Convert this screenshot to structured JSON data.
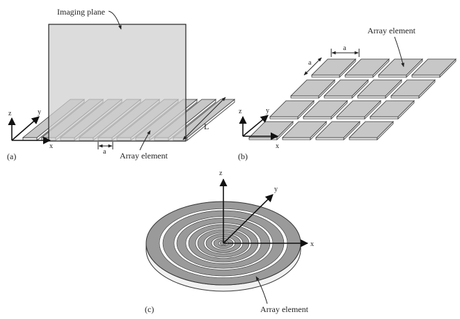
{
  "panel_a": {
    "imaging_plane_label": "Imaging plane",
    "array_element_label": "Array element",
    "dim_a": "a",
    "dim_L": "L",
    "axis_z": "z",
    "axis_y": "y",
    "axis_x": "x",
    "panel_label": "(a)"
  },
  "panel_b": {
    "array_element_label": "Array element",
    "dim_a_top": "a",
    "dim_a_side": "a",
    "axis_z": "z",
    "axis_y": "y",
    "axis_x": "x",
    "panel_label": "(b)"
  },
  "panel_c": {
    "array_element_label": "Array element",
    "axis_z": "z",
    "axis_y": "y",
    "axis_x": "x",
    "panel_label": "(c)"
  },
  "colors": {
    "element_fill": "#c7c7c7",
    "plane_fill": "#d6d6d6",
    "ring_fill": "#9a9a9a",
    "line": "#222222"
  }
}
